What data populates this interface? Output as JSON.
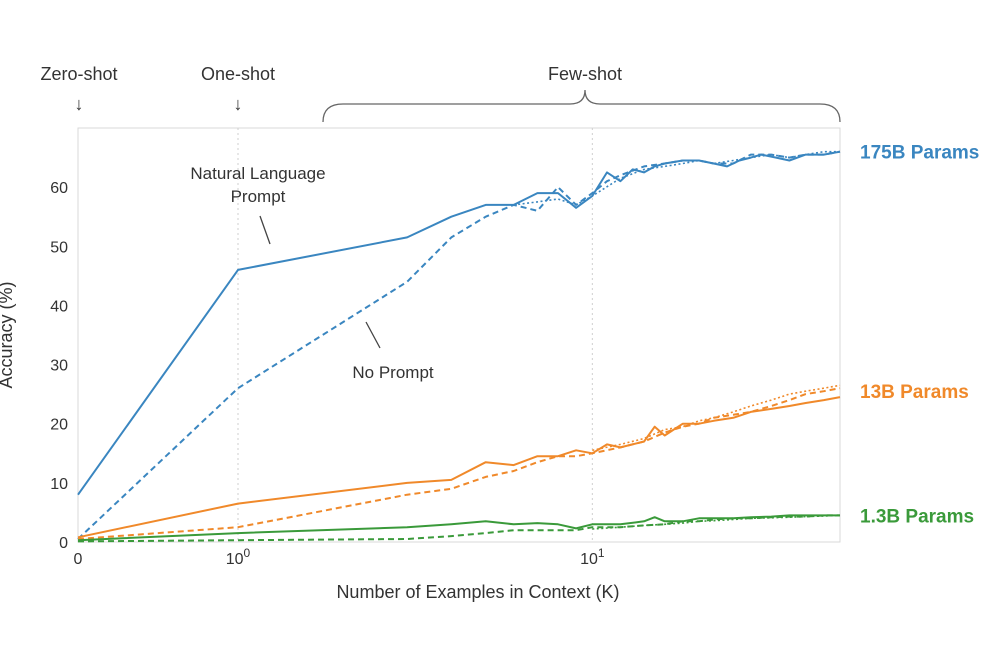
{
  "chart_data": {
    "type": "line",
    "title": "",
    "xlabel": "Number of Examples in Context  (K)",
    "ylabel": "Accuracy (%)",
    "xscale": "log (with 0)",
    "xlim": [
      0,
      50
    ],
    "ylim": [
      0,
      70
    ],
    "yticks": [
      0,
      10,
      20,
      30,
      40,
      50,
      60
    ],
    "xticks": [
      {
        "value": 0,
        "label": "0",
        "sup": ""
      },
      {
        "value": 1,
        "label": "10",
        "sup": "0"
      },
      {
        "value": 10,
        "label": "10",
        "sup": "1"
      }
    ],
    "grid": "vertical dotted at 10^0 and 10^1",
    "setting_labels": {
      "zero_shot": "Zero-shot",
      "one_shot": "One-shot",
      "few_shot": "Few-shot",
      "arrow": "↓"
    },
    "annotations": {
      "natural_language_line1": "Natural Language",
      "natural_language_line2": "Prompt",
      "no_prompt": "No Prompt"
    },
    "series": [
      {
        "name": "175B Params",
        "group": "175B",
        "style": "solid",
        "color": "#3a86c0",
        "x": [
          0,
          1,
          3,
          4,
          5,
          6,
          7,
          8,
          9,
          10,
          11,
          12,
          13,
          14,
          15,
          16,
          18,
          20,
          22,
          24,
          26,
          28,
          30,
          33,
          36,
          40,
          45,
          50
        ],
        "y": [
          8,
          46,
          51.5,
          55,
          57,
          57,
          59,
          59,
          56.5,
          58.5,
          62.5,
          61,
          63,
          62.5,
          63.5,
          64,
          64.5,
          64.5,
          64,
          63.5,
          64.5,
          65,
          65.5,
          65,
          64.5,
          65.5,
          65.5,
          66
        ]
      },
      {
        "name": "",
        "group": "175B",
        "style": "dashed",
        "color": "#3a86c0",
        "x": [
          0,
          1,
          3,
          4,
          5,
          6,
          7,
          8,
          9,
          10,
          11,
          12,
          14,
          16,
          18,
          20,
          22,
          25,
          28,
          32,
          36,
          40,
          45,
          50
        ],
        "y": [
          0.5,
          26,
          44,
          51.5,
          55,
          57,
          56,
          60,
          57,
          59,
          61,
          62,
          63.5,
          64,
          64.5,
          64.5,
          64,
          64,
          65.5,
          65.5,
          65,
          65.5,
          65.5,
          66
        ]
      },
      {
        "name": "",
        "group": "175B",
        "style": "dotted",
        "color": "#3a86c0",
        "x": [
          6,
          7,
          8,
          9,
          10,
          12,
          14,
          16,
          18,
          20,
          22,
          25,
          28,
          32,
          36,
          40,
          45,
          50
        ],
        "y": [
          57,
          57.5,
          58,
          57,
          58.5,
          61.5,
          63,
          63.5,
          64,
          64.5,
          64,
          64.5,
          65,
          65.5,
          65,
          65.5,
          66,
          66
        ]
      },
      {
        "name": "13B Params",
        "group": "13B",
        "style": "solid",
        "color": "#f0892a",
        "x": [
          0,
          1,
          3,
          4,
          5,
          6,
          7,
          8,
          9,
          10,
          11,
          12,
          14,
          15,
          16,
          18,
          20,
          22,
          25,
          28,
          32,
          36,
          40,
          45,
          50
        ],
        "y": [
          0.8,
          6.5,
          10,
          10.5,
          13.5,
          13,
          14.5,
          14.5,
          15.5,
          15,
          16.5,
          16,
          17,
          19.5,
          18,
          20,
          20,
          20.5,
          21,
          22,
          22.5,
          23,
          23.5,
          24,
          24.5
        ]
      },
      {
        "name": "",
        "group": "13B",
        "style": "dashed",
        "color": "#f0892a",
        "x": [
          0,
          1,
          3,
          4,
          5,
          6,
          7,
          8,
          9,
          10,
          12,
          14,
          16,
          18,
          20,
          22,
          25,
          28,
          32,
          36,
          40,
          45,
          50
        ],
        "y": [
          0.5,
          2.5,
          8,
          9,
          11,
          12,
          13.5,
          14.5,
          14.5,
          15,
          16,
          17,
          18.5,
          19.5,
          20,
          21,
          21.5,
          22,
          23,
          24,
          25,
          25.5,
          26
        ]
      },
      {
        "name": "",
        "group": "13B",
        "style": "dotted",
        "color": "#f0892a",
        "x": [
          10,
          12,
          14,
          16,
          18,
          20,
          22,
          25,
          28,
          32,
          36,
          40,
          45,
          50
        ],
        "y": [
          15.5,
          16.5,
          17.5,
          19,
          19.5,
          20.5,
          21,
          22,
          23,
          24,
          25,
          25.5,
          26,
          26.5
        ]
      },
      {
        "name": "1.3B Params",
        "group": "1.3B",
        "style": "solid",
        "color": "#3a9a3a",
        "x": [
          0,
          1,
          3,
          4,
          5,
          6,
          7,
          8,
          9,
          10,
          12,
          14,
          15,
          16,
          18,
          20,
          22,
          25,
          28,
          32,
          36,
          40,
          45,
          50
        ],
        "y": [
          0.3,
          1.5,
          2.5,
          3,
          3.5,
          3,
          3.2,
          3,
          2.3,
          3,
          3,
          3.5,
          4.2,
          3.5,
          3.5,
          4,
          4,
          4,
          4.2,
          4.3,
          4.5,
          4.5,
          4.5,
          4.5
        ]
      },
      {
        "name": "",
        "group": "1.3B",
        "style": "dashed",
        "color": "#3a9a3a",
        "x": [
          0,
          1,
          3,
          4,
          5,
          6,
          7,
          8,
          9,
          10,
          12,
          14,
          16,
          18,
          20,
          22,
          25,
          28,
          32,
          36,
          40,
          45,
          50
        ],
        "y": [
          0.1,
          0.3,
          0.5,
          1,
          1.5,
          2,
          2,
          2,
          2,
          2.5,
          2.5,
          2.8,
          3,
          3.5,
          3.5,
          3.8,
          4,
          4,
          4.2,
          4.3,
          4.3,
          4.5,
          4.5
        ]
      },
      {
        "name": "",
        "group": "1.3B",
        "style": "dotted",
        "color": "#3a9a3a",
        "x": [
          10,
          12,
          14,
          16,
          18,
          20,
          22,
          25,
          28,
          32,
          36,
          40,
          45,
          50
        ],
        "y": [
          2.2,
          2.5,
          2.8,
          3,
          3.2,
          3.5,
          3.6,
          3.8,
          4,
          4.1,
          4.2,
          4.3,
          4.4,
          4.5
        ]
      }
    ],
    "series_labels": [
      {
        "text": "175B Params",
        "color": "#3a86c0",
        "y": 66
      },
      {
        "text": "13B Params",
        "color": "#f0892a",
        "y": 25.5
      },
      {
        "text": "1.3B Params",
        "color": "#3a9a3a",
        "y": 4.5
      }
    ]
  }
}
